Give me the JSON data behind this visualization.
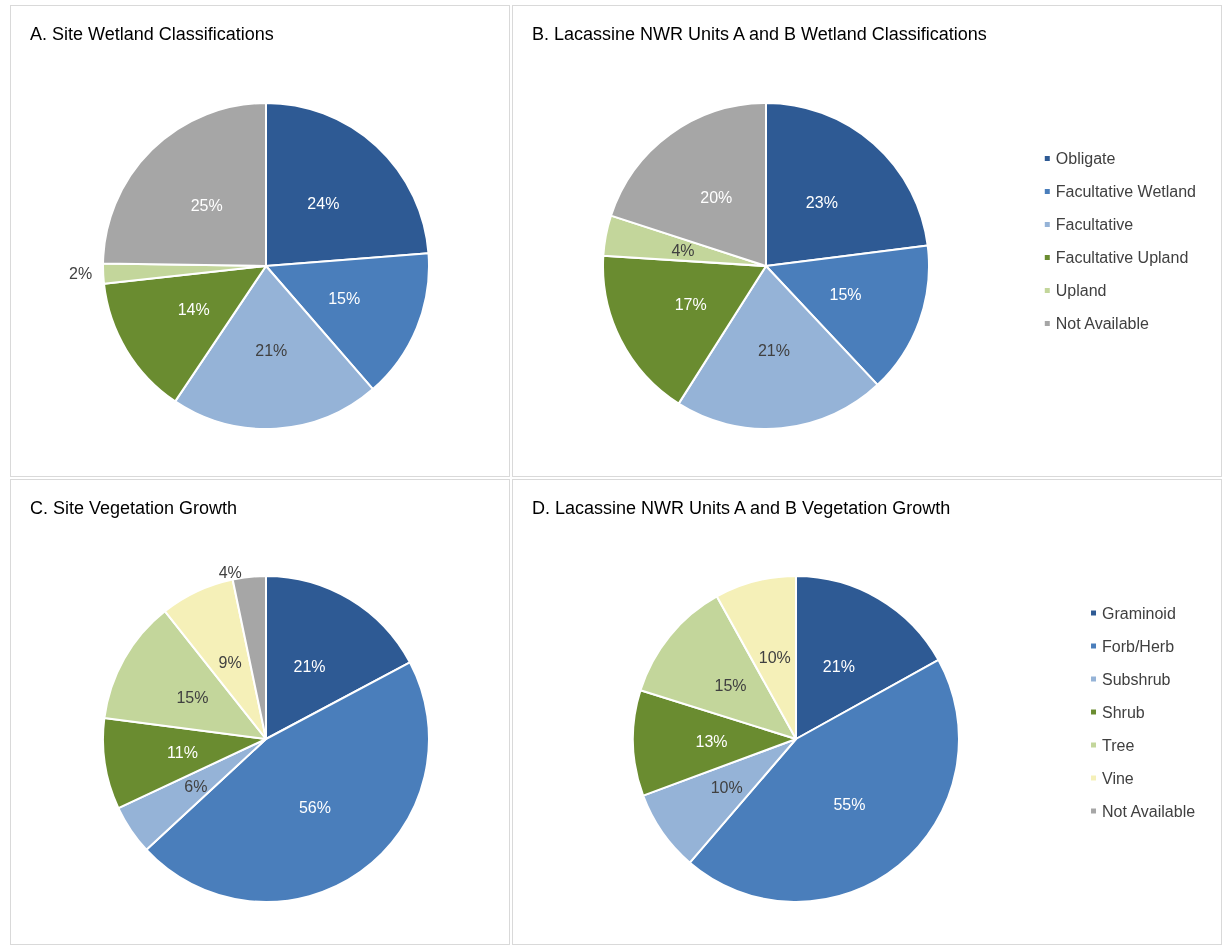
{
  "chart_data": [
    {
      "type": "pie",
      "title": "A. Site Wetland Classifications",
      "categories": [
        null,
        null,
        null,
        null,
        null,
        null
      ],
      "values": [
        24,
        15,
        21,
        14,
        2,
        25
      ],
      "value_labels": [
        "24%",
        "15%",
        "21%",
        "14%",
        "2%",
        "25%"
      ],
      "colors": [
        "#2e5a94",
        "#4a7ebb",
        "#95b3d7",
        "#6a8c30",
        "#c3d69b",
        "#a6a6a6"
      ],
      "legend": false
    },
    {
      "type": "pie",
      "title": "B. Lacassine NWR Units A and B Wetland Classifications",
      "categories": [
        "Obligate",
        "Facultative Wetland",
        "Facultative",
        "Facultative Upland",
        "Upland",
        "Not Available"
      ],
      "values": [
        23,
        15,
        21,
        17,
        4,
        20
      ],
      "value_labels": [
        "23%",
        "15%",
        "21%",
        "17%",
        "4%",
        "20%"
      ],
      "colors": [
        "#2e5a94",
        "#4a7ebb",
        "#95b3d7",
        "#6a8c30",
        "#c3d69b",
        "#a6a6a6"
      ],
      "legend": "right"
    },
    {
      "type": "pie",
      "title": "C. Site Vegetation Growth",
      "categories": [
        null,
        null,
        null,
        null,
        null,
        null,
        null
      ],
      "values": [
        21,
        56,
        6,
        11,
        15,
        9,
        4
      ],
      "value_labels": [
        "21%",
        "56%",
        "6%",
        "11%",
        "15%",
        "9%",
        "4%"
      ],
      "colors": [
        "#2e5a94",
        "#4a7ebb",
        "#95b3d7",
        "#6a8c30",
        "#c3d69b",
        "#f5f0b8",
        "#a6a6a6"
      ],
      "legend": false
    },
    {
      "type": "pie",
      "title": "D. Lacassine NWR Units A and B Vegetation Growth",
      "categories": [
        "Graminoid",
        "Forb/Herb",
        "Subshrub",
        "Shrub",
        "Tree",
        "Vine",
        "Not Available"
      ],
      "values": [
        21,
        55,
        10,
        13,
        15,
        10,
        null
      ],
      "value_labels": [
        "21%",
        "55%",
        "10%",
        "13%",
        "15%",
        "10%",
        null
      ],
      "colors": [
        "#2e5a94",
        "#4a7ebb",
        "#95b3d7",
        "#6a8c30",
        "#c3d69b",
        "#f5f0b8",
        "#a6a6a6"
      ],
      "legend": "right"
    }
  ]
}
